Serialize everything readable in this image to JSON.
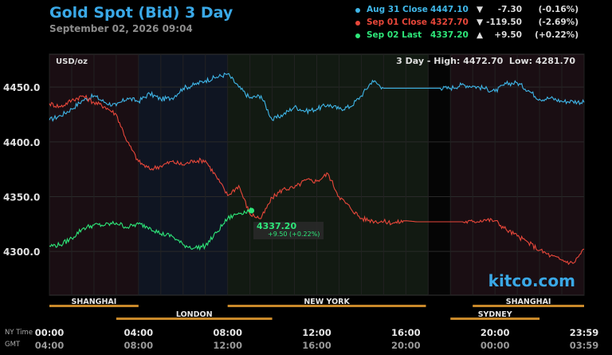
{
  "title": "Gold Spot (Bid) 3 Day",
  "date": "September 02, 2026 09:04",
  "legend": [
    {
      "name": "Aug 31 Close",
      "value": "4447.10",
      "arrow": "▼",
      "change": "-7.30",
      "pct": "(-0.16%)",
      "color": "#3fb6e8"
    },
    {
      "name": "Sep 01 Close",
      "value": "4327.70",
      "arrow": "▼",
      "change": "-119.50",
      "pct": "(-2.69%)",
      "color": "#e8473a"
    },
    {
      "name": "Sep 02 Last",
      "value": "4337.20",
      "arrow": "▲",
      "change": "+9.50",
      "pct": "(+0.22%)",
      "color": "#2ee87a"
    }
  ],
  "unit": "USD/oz",
  "stats": "3 Day - High: 4472.70  Low: 4281.70",
  "watermark": "kitco.com",
  "last_label": {
    "price": "4337.20",
    "change": "+9.50 (+0.22%)"
  },
  "sessions_top": [
    "SHANGHAI",
    "NEW YORK",
    "SHANGHAI"
  ],
  "sessions_bottom": [
    "LONDON",
    "SYDNEY"
  ],
  "time_labels": {
    "ny": "NY Time",
    "gmt": "GMT"
  },
  "chart_data": {
    "type": "line",
    "title": "Gold Spot (Bid) 3 Day",
    "ylabel": "USD/oz",
    "ylim": [
      4260,
      4480
    ],
    "xlim_hours": [
      0,
      24
    ],
    "yticks": [
      4300.0,
      4350.0,
      4400.0,
      4450.0
    ],
    "ytick_labels": [
      "4300.0",
      "4350.0",
      "4400.0",
      "4450.0"
    ],
    "xticks_ny": [
      "00:00",
      "04:00",
      "08:00",
      "12:00",
      "16:00",
      "20:00",
      "23:59"
    ],
    "xticks_gmt": [
      "04:00",
      "08:00",
      "12:00",
      "16:00",
      "20:00",
      "00:00",
      "03:59"
    ],
    "series": [
      {
        "name": "Aug 31",
        "color": "#3fb6e8",
        "x": [
          0,
          0.5,
          1,
          1.5,
          2,
          2.5,
          3,
          3.5,
          4,
          4.5,
          5,
          5.5,
          6,
          6.5,
          7,
          7.5,
          8,
          8.5,
          9,
          9.5,
          10,
          10.5,
          11,
          11.5,
          12,
          12.5,
          13,
          13.5,
          14,
          14.5,
          15,
          15.5,
          16,
          16.5,
          17,
          17.5,
          18,
          18.5,
          19,
          19.5,
          20,
          20.5,
          21,
          21.5,
          22,
          22.5,
          23,
          23.5,
          24
        ],
        "values": [
          4420,
          4424,
          4430,
          4438,
          4442,
          4436,
          4433,
          4440,
          4437,
          4444,
          4439,
          4440,
          4449,
          4452,
          4456,
          4459,
          4462,
          4450,
          4440,
          4442,
          4420,
          4425,
          4432,
          4428,
          4430,
          4434,
          4430,
          4432,
          4442,
          4456,
          4449,
          4449,
          4449,
          4449,
          4449,
          4449,
          4449,
          4452,
          4451,
          4449,
          4446,
          4453,
          4454,
          4447,
          4439,
          4440,
          4437,
          4437,
          4436
        ]
      },
      {
        "name": "Sep 01",
        "color": "#e8473a",
        "x": [
          0,
          0.5,
          1,
          1.5,
          2,
          2.5,
          3,
          3.5,
          4,
          4.5,
          5,
          5.5,
          6,
          6.5,
          7,
          7.5,
          8,
          8.5,
          9,
          9.5,
          10,
          10.5,
          11,
          11.5,
          12,
          12.5,
          13,
          13.5,
          14,
          14.5,
          15,
          15.5,
          16,
          16.5,
          17,
          17.5,
          18,
          18.5,
          19,
          19.5,
          20,
          20.5,
          21,
          21.5,
          22,
          22.5,
          23,
          23.5,
          24
        ],
        "values": [
          4435,
          4432,
          4438,
          4442,
          4436,
          4432,
          4425,
          4400,
          4382,
          4375,
          4378,
          4382,
          4379,
          4383,
          4383,
          4368,
          4351,
          4360,
          4334,
          4330,
          4349,
          4357,
          4358,
          4365,
          4364,
          4371,
          4350,
          4340,
          4330,
          4328,
          4327,
          4326,
          4328,
          4327,
          4327,
          4327,
          4327,
          4327,
          4327,
          4329,
          4328,
          4320,
          4314,
          4308,
          4301,
          4296,
          4292,
          4289,
          4302
        ]
      },
      {
        "name": "Sep 02",
        "color": "#2ee87a",
        "x": [
          0,
          0.5,
          1,
          1.5,
          2,
          2.5,
          3,
          3.5,
          4,
          4.5,
          5,
          5.5,
          6,
          6.5,
          7,
          7.5,
          8,
          8.5,
          9,
          9.07
        ],
        "values": [
          4305,
          4306,
          4312,
          4321,
          4324,
          4324,
          4326,
          4322,
          4325,
          4322,
          4316,
          4314,
          4306,
          4303,
          4305,
          4317,
          4330,
          4335,
          4337,
          4337.2
        ]
      }
    ]
  }
}
